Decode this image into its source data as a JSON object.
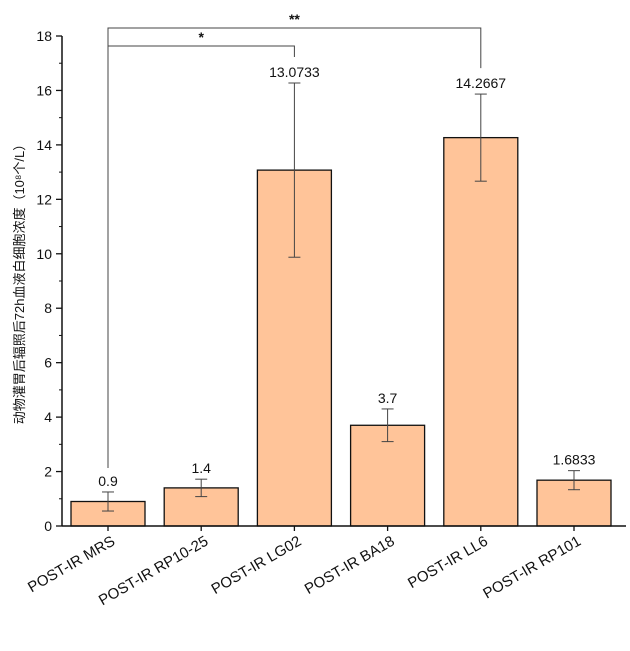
{
  "chart_data": {
    "type": "bar",
    "title": "",
    "xlabel": "",
    "ylabel": "动物灌胃后辐照后72h血液白细胞浓度（10⁸个/L）",
    "ylim": [
      0,
      18
    ],
    "yticks": [
      0,
      2,
      4,
      6,
      8,
      10,
      12,
      14,
      16,
      18
    ],
    "grid": false,
    "bar_color": "#FFC499",
    "categories": [
      "POST-IR MRS",
      "POST-IR RP10-25",
      "POST-IR LG02",
      "POST-IR BA18",
      "POST-IR LL6",
      "POST-IR RP101"
    ],
    "values": [
      0.9,
      1.4,
      13.0733,
      3.7,
      14.2667,
      1.6833
    ],
    "data_labels": [
      "0.9",
      "1.4",
      "13.0733",
      "3.7",
      "14.2667",
      "1.6833"
    ],
    "error_bars": [
      0.35,
      0.32,
      3.2,
      0.6,
      1.6,
      0.35
    ],
    "significance": [
      {
        "from": "POST-IR MRS",
        "to": "POST-IR LG02",
        "label": "*"
      },
      {
        "from": "POST-IR MRS",
        "to": "POST-IR LL6",
        "label": "**"
      }
    ]
  }
}
